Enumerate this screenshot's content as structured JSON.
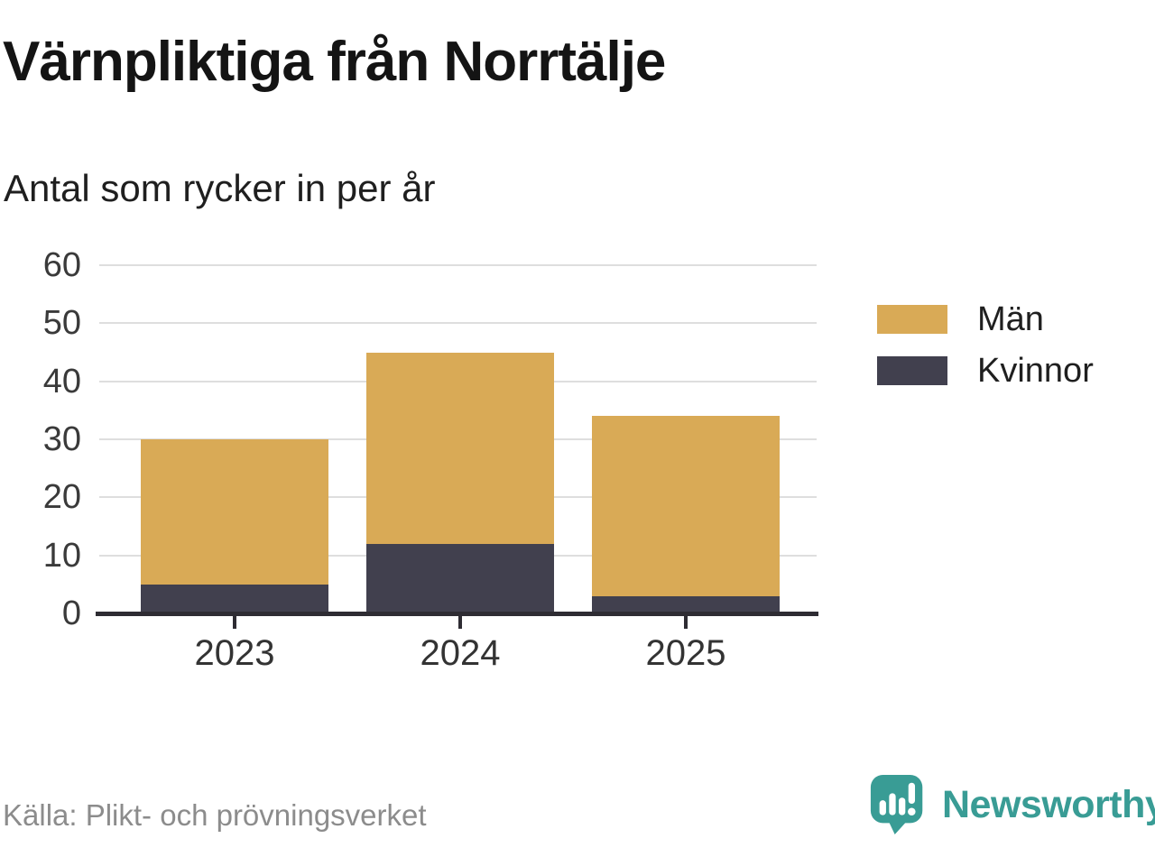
{
  "title": "Värnpliktiga från Norrtälje",
  "subtitle": "Antal som rycker in per år",
  "source": "Källa: Plikt- och prövningsverket",
  "brand": {
    "name": "Newsworthy"
  },
  "colors": {
    "men": "#d9aa56",
    "women": "#41404e",
    "grid": "#dedede",
    "axis": "#2e2c33",
    "teal": "#399c95",
    "label": "#3a3a3a",
    "source_text": "#8c8c8c"
  },
  "legend": [
    {
      "label": "Män",
      "color_key": "men"
    },
    {
      "label": "Kvinnor",
      "color_key": "women"
    }
  ],
  "chart_data": {
    "type": "bar",
    "stacked": true,
    "categories": [
      "2023",
      "2024",
      "2025"
    ],
    "series": [
      {
        "name": "Kvinnor",
        "values": [
          5,
          12,
          3
        ]
      },
      {
        "name": "Män",
        "values": [
          25,
          33,
          31
        ]
      }
    ],
    "totals": [
      30,
      45,
      34
    ],
    "title": "Värnpliktiga från Norrtälje",
    "subtitle": "Antal som rycker in per år",
    "xlabel": "",
    "ylabel": "",
    "ylim": [
      0,
      60
    ],
    "yticks": [
      0,
      10,
      20,
      30,
      40,
      50,
      60
    ],
    "grid": true,
    "legend_position": "right"
  }
}
